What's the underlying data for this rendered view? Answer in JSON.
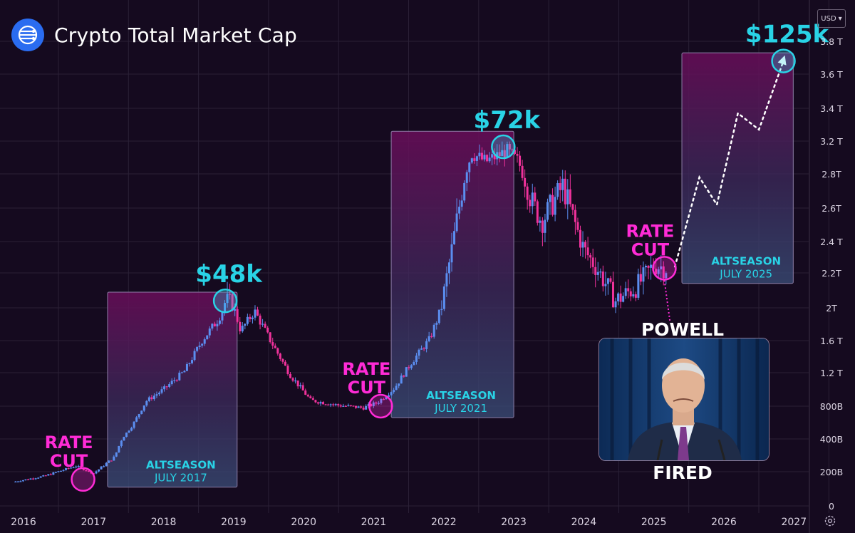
{
  "header": {
    "title": "Crypto Total Market Cap",
    "logo_icon": "network-nodes-icon",
    "logo_color": "#2a6cf0"
  },
  "toolbar": {
    "currency": "USD",
    "settings_icon": "gear-icon"
  },
  "colors": {
    "background": "#150a1f",
    "up": "#5b8ef0",
    "down": "#f0329b",
    "peak": "#29d3e6",
    "rate_cut": "#ff2bd6",
    "altseason_text": "#29d3e6",
    "grid": "#2a2036"
  },
  "chart_data": {
    "type": "candlestick",
    "title": "Crypto Total Market Cap",
    "currency": "USD",
    "x_ticks": [
      "2016",
      "2017",
      "2018",
      "2019",
      "2020",
      "2021",
      "2022",
      "2023",
      "2024",
      "2025",
      "2026",
      "2027"
    ],
    "y_ticks": [
      "0",
      "200B",
      "400B",
      "800B",
      "1.2 T",
      "1.6 T",
      "2T",
      "2.2T",
      "2.4 T",
      "2.6T",
      "2.8T",
      "3.2 T",
      "3.4 T",
      "3.6 T",
      "3.8 T"
    ],
    "y_tick_values": [
      0,
      200,
      400,
      800,
      1200,
      1600,
      2000,
      2200,
      2400,
      2600,
      2800,
      3200,
      3400,
      3600,
      3800
    ],
    "y_unit": "billions USD",
    "x_range": [
      2015.8,
      2027.2
    ],
    "grid": true,
    "price_path": [
      [
        2015.85,
        140
      ],
      [
        2016.3,
        175
      ],
      [
        2016.75,
        235
      ],
      [
        2017.0,
        190
      ],
      [
        2017.3,
        290
      ],
      [
        2017.55,
        560
      ],
      [
        2017.75,
        860
      ],
      [
        2018.0,
        1000
      ],
      [
        2018.3,
        1220
      ],
      [
        2018.55,
        1600
      ],
      [
        2018.78,
        1860
      ],
      [
        2018.88,
        2040
      ],
      [
        2019.0,
        2010
      ],
      [
        2019.1,
        1720
      ],
      [
        2019.3,
        1960
      ],
      [
        2019.5,
        1640
      ],
      [
        2019.8,
        1180
      ],
      [
        2020.1,
        870
      ],
      [
        2020.5,
        810
      ],
      [
        2020.85,
        780
      ],
      [
        2021.05,
        840
      ],
      [
        2021.3,
        1020
      ],
      [
        2021.55,
        1340
      ],
      [
        2021.8,
        1620
      ],
      [
        2022.05,
        2190
      ],
      [
        2022.4,
        3050
      ],
      [
        2022.6,
        2950
      ],
      [
        2022.9,
        3080
      ],
      [
        2023.05,
        2960
      ],
      [
        2023.25,
        2640
      ],
      [
        2023.4,
        2520
      ],
      [
        2023.7,
        2730
      ],
      [
        2024.0,
        2350
      ],
      [
        2024.2,
        2220
      ],
      [
        2024.45,
        2040
      ],
      [
        2024.75,
        2120
      ],
      [
        2025.0,
        2250
      ],
      [
        2025.2,
        2230
      ]
    ],
    "projection": [
      [
        2025.3,
        2240
      ],
      [
        2025.65,
        2780
      ],
      [
        2025.9,
        2620
      ],
      [
        2026.2,
        3370
      ],
      [
        2026.5,
        3270
      ],
      [
        2026.85,
        3680
      ]
    ],
    "peaks": [
      {
        "label": "$48k",
        "x": 2018.88,
        "y": 2040
      },
      {
        "label": "$72k",
        "x": 2022.85,
        "y": 3130
      },
      {
        "label": "$125k",
        "x": 2026.85,
        "y": 3680
      }
    ],
    "rate_cuts": [
      {
        "line1": "RATE",
        "line2": "CUT",
        "x": 2016.85,
        "y": 155
      },
      {
        "line1": "RATE",
        "line2": "CUT",
        "x": 2021.1,
        "y": 800
      },
      {
        "line1": "RATE",
        "line2": "CUT",
        "x": 2025.15,
        "y": 2230
      }
    ],
    "altseason_boxes": [
      {
        "label": "ALTSEASON",
        "sub": "JULY 2017",
        "x0": 2017.2,
        "x1": 2019.05,
        "y_top": 2090,
        "y_bottom": 110
      },
      {
        "label": "ALTSEASON",
        "sub": "JULY 2021",
        "x0": 2021.25,
        "x1": 2023.0,
        "y_top": 3260,
        "y_bottom": 660
      },
      {
        "label": "ALTSEASON",
        "sub": "JULY 2025",
        "x0": 2025.4,
        "x1": 2027.2,
        "y_top": 3730,
        "y_bottom": 2140
      }
    ],
    "annotation": {
      "top": "POWELL",
      "bottom": "FIRED",
      "image": "jerome-powell-portrait"
    }
  }
}
